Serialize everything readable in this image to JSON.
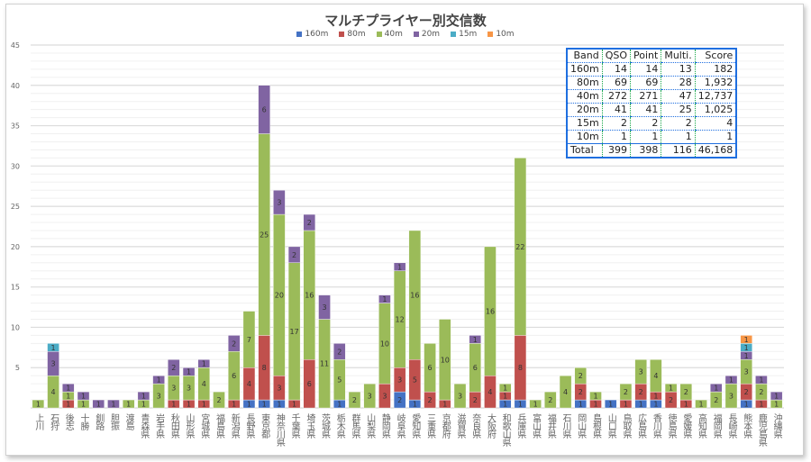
{
  "chart_data": {
    "type": "bar",
    "stacked": true,
    "title": "マルチプライヤー別交信数",
    "legend_position": "top",
    "grid": true,
    "ylim": [
      0,
      45
    ],
    "yticks": [
      5,
      10,
      15,
      20,
      25,
      30,
      35,
      40,
      45
    ],
    "categories": [
      "上川",
      "石狩",
      "後志",
      "十勝",
      "釧路",
      "胆振",
      "渡島",
      "青森県",
      "岩手県",
      "秋田県",
      "山形県",
      "宮城県",
      "福島県",
      "新潟県",
      "長野県",
      "東京都",
      "神奈川県",
      "千葉県",
      "埼玉県",
      "茨城県",
      "栃木県",
      "群馬県",
      "山梨県",
      "静岡県",
      "岐阜県",
      "愛知県",
      "三重県",
      "京都府",
      "滋賀県",
      "奈良県",
      "大阪府",
      "和歌山県",
      "兵庫県",
      "富山県",
      "福井県",
      "石川県",
      "岡山県",
      "島根県",
      "山口県",
      "鳥取県",
      "広島県",
      "香川県",
      "徳島県",
      "愛媛県",
      "高知県",
      "福岡県",
      "長崎県",
      "熊本県",
      "鹿児島県",
      "沖縄県"
    ],
    "series": [
      {
        "name": "160m",
        "color": "#4472c4",
        "values": [
          0,
          0,
          0,
          0,
          0,
          0,
          0,
          0,
          0,
          0,
          0,
          0,
          0,
          0,
          1,
          1,
          1,
          0,
          0,
          0,
          1,
          0,
          0,
          0,
          2,
          1,
          0,
          0,
          0,
          0,
          0,
          1,
          1,
          0,
          0,
          0,
          1,
          0,
          1,
          0,
          1,
          1,
          0,
          0,
          0,
          0,
          0,
          1,
          0,
          0
        ]
      },
      {
        "name": "80m",
        "color": "#c0504d",
        "values": [
          0,
          0,
          1,
          0,
          0,
          0,
          0,
          0,
          0,
          1,
          1,
          1,
          0,
          1,
          4,
          8,
          3,
          1,
          6,
          0,
          0,
          0,
          0,
          3,
          3,
          5,
          2,
          1,
          0,
          2,
          4,
          1,
          8,
          0,
          0,
          0,
          2,
          1,
          0,
          1,
          2,
          1,
          2,
          1,
          0,
          0,
          0,
          2,
          1,
          0
        ]
      },
      {
        "name": "40m",
        "color": "#9bbb59",
        "values": [
          1,
          4,
          1,
          1,
          0,
          0,
          1,
          1,
          3,
          3,
          3,
          4,
          2,
          6,
          7,
          25,
          20,
          17,
          16,
          11,
          5,
          2,
          3,
          10,
          12,
          16,
          6,
          10,
          3,
          6,
          16,
          1,
          22,
          1,
          2,
          4,
          2,
          1,
          0,
          2,
          3,
          4,
          1,
          2,
          1,
          2,
          3,
          3,
          2,
          1
        ]
      },
      {
        "name": "20m",
        "color": "#8064a2",
        "values": [
          0,
          3,
          1,
          1,
          1,
          1,
          0,
          1,
          1,
          2,
          1,
          1,
          0,
          2,
          0,
          6,
          3,
          2,
          2,
          3,
          2,
          0,
          0,
          1,
          1,
          0,
          0,
          0,
          0,
          1,
          0,
          0,
          0,
          0,
          0,
          0,
          0,
          0,
          0,
          0,
          0,
          0,
          0,
          0,
          0,
          1,
          1,
          1,
          1,
          1
        ]
      },
      {
        "name": "15m",
        "color": "#4bacc6",
        "values": [
          0,
          1,
          0,
          0,
          0,
          0,
          0,
          0,
          0,
          0,
          0,
          0,
          0,
          0,
          0,
          0,
          0,
          0,
          0,
          0,
          0,
          0,
          0,
          0,
          0,
          0,
          0,
          0,
          0,
          0,
          0,
          0,
          0,
          0,
          0,
          0,
          0,
          0,
          0,
          0,
          0,
          0,
          0,
          0,
          0,
          0,
          0,
          1,
          0,
          0
        ]
      },
      {
        "name": "10m",
        "color": "#f79646",
        "values": [
          0,
          0,
          0,
          0,
          0,
          0,
          0,
          0,
          0,
          0,
          0,
          0,
          0,
          0,
          0,
          0,
          0,
          0,
          0,
          0,
          0,
          0,
          0,
          0,
          0,
          0,
          0,
          0,
          0,
          0,
          0,
          0,
          0,
          0,
          0,
          0,
          0,
          0,
          0,
          0,
          0,
          0,
          0,
          0,
          0,
          0,
          0,
          1,
          0,
          0
        ]
      }
    ]
  },
  "score_table": {
    "headers": [
      "Band",
      "QSO",
      "Point",
      "Multi.",
      "Score"
    ],
    "rows": [
      [
        "160m",
        "14",
        "14",
        "13",
        "182"
      ],
      [
        "80m",
        "69",
        "69",
        "28",
        "1,932"
      ],
      [
        "40m",
        "272",
        "271",
        "47",
        "12,737"
      ],
      [
        "20m",
        "41",
        "41",
        "25",
        "1,025"
      ],
      [
        "15m",
        "2",
        "2",
        "2",
        "4"
      ],
      [
        "10m",
        "1",
        "1",
        "1",
        "1"
      ]
    ],
    "total": [
      "Total",
      "399",
      "398",
      "116",
      "46,168"
    ]
  }
}
